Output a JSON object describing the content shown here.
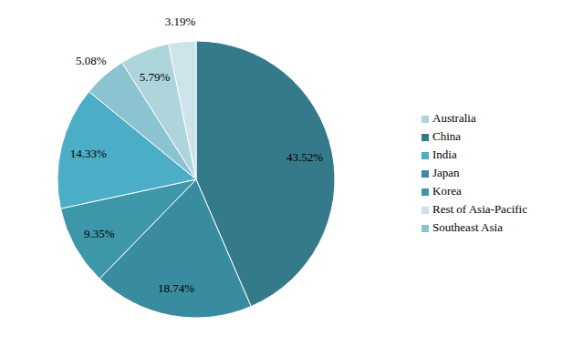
{
  "chart_data": {
    "type": "pie",
    "categories": [
      "China",
      "Japan",
      "Korea",
      "India",
      "Southeast Asia",
      "Australia",
      "Rest of Asia-Pacific"
    ],
    "values": [
      43.52,
      18.74,
      9.35,
      14.33,
      5.08,
      5.79,
      3.19
    ],
    "value_labels": [
      "43.52%",
      "18.74%",
      "9.35%",
      "14.33%",
      "5.08%",
      "5.79%",
      "3.19%"
    ],
    "colors": [
      "#357a8a",
      "#398c9f",
      "#3e96a9",
      "#4badc6",
      "#8cc3d0",
      "#aed4dc",
      "#cde3ea"
    ],
    "data_labels": true,
    "legend": "right"
  }
}
